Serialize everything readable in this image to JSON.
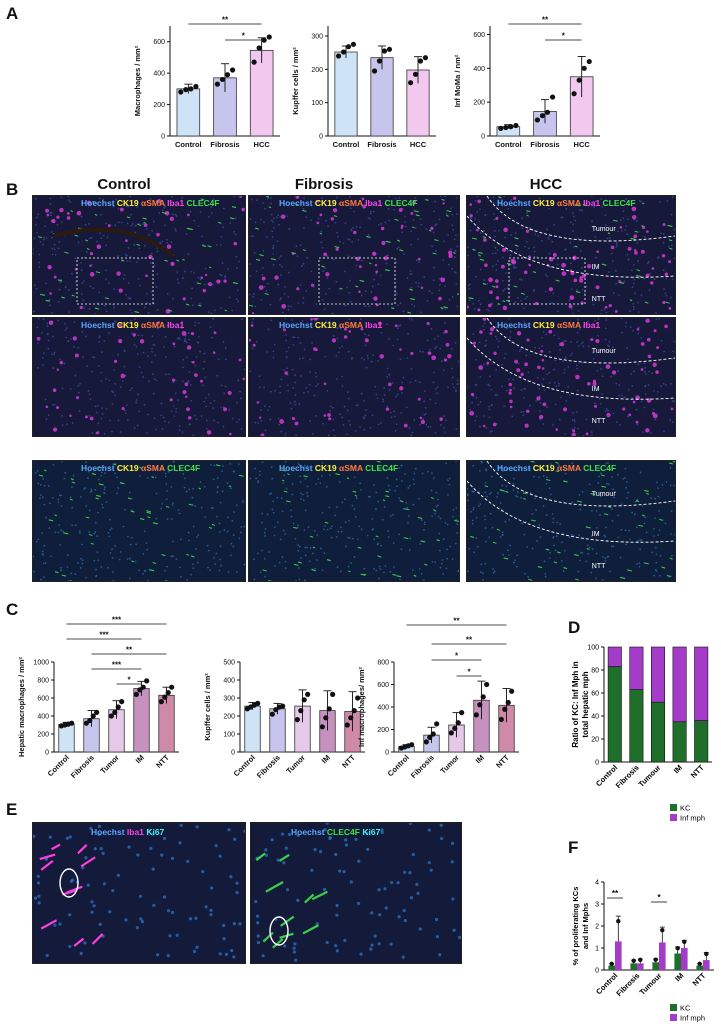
{
  "panels": {
    "A": "A",
    "B": "B",
    "C": "C",
    "D": "D",
    "E": "E",
    "F": "F"
  },
  "sig": {
    "two": "**",
    "one": "*",
    "three": "***"
  },
  "colors": {
    "control": "#cfe3f7",
    "fibrosis": "#c7c5ee",
    "hcc": "#f2c8ee",
    "tumor": "#e6c9e8",
    "im": "#c690bf",
    "ntt": "#cf8aa8",
    "kc": "#1f6e2a",
    "infmph": "#a43bc9"
  },
  "panelA": [
    {
      "ylabel": "Macrophages / mm²",
      "yticks": [
        "0",
        "200",
        "400",
        "600"
      ],
      "ymax": 700,
      "categories": [
        "Control",
        "Fibrosis",
        "HCC"
      ],
      "values": [
        300,
        370,
        545
      ],
      "errors": [
        30,
        90,
        80
      ],
      "points": [
        [
          280,
          295,
          300,
          315
        ],
        [
          330,
          360,
          390,
          420
        ],
        [
          470,
          560,
          610,
          630
        ]
      ]
    },
    {
      "ylabel": "Kupffer cells / mm²",
      "yticks": [
        "0",
        "100",
        "200",
        "300"
      ],
      "ymax": 330,
      "categories": [
        "Control",
        "Fibrosis",
        "HCC"
      ],
      "values": [
        252,
        235,
        198
      ],
      "errors": [
        18,
        35,
        40
      ],
      "points": [
        [
          240,
          252,
          268,
          275
        ],
        [
          195,
          225,
          255,
          260
        ],
        [
          160,
          185,
          225,
          235
        ]
      ]
    },
    {
      "ylabel": "Inf MoMa / nm²",
      "yticks": [
        "0",
        "200",
        "400",
        "600"
      ],
      "ymax": 650,
      "categories": [
        "Control",
        "Fibrosis",
        "HCC"
      ],
      "values": [
        55,
        145,
        350
      ],
      "errors": [
        12,
        70,
        120
      ],
      "points": [
        [
          45,
          50,
          55,
          62
        ],
        [
          95,
          120,
          140,
          230
        ],
        [
          250,
          330,
          400,
          440
        ]
      ]
    }
  ],
  "panelB": {
    "columns": [
      "Control",
      "Fibrosis",
      "HCC"
    ],
    "stains_row1": [
      "Hoechst",
      "CK19",
      "αSMA",
      "Iba1",
      "CLEC4F"
    ],
    "stains_row2": [
      "Hoechst",
      "CK19",
      "αSMA",
      "Iba1"
    ],
    "stains_row3": [
      "Hoechst",
      "CK19",
      "αSMA",
      "CLEC4F"
    ],
    "regions": [
      "Tumour",
      "IM",
      "NTT"
    ]
  },
  "panelC": [
    {
      "ylabel": "Hepatic macrophages / mm²",
      "yticks": [
        "0",
        "200",
        "400",
        "600",
        "800",
        "1000"
      ],
      "ymax": 1000,
      "categories": [
        "Control",
        "Fibrosis",
        "Tumor",
        "IM",
        "NTT"
      ],
      "values": [
        305,
        370,
        470,
        705,
        630
      ],
      "errors": [
        25,
        90,
        100,
        80,
        90
      ],
      "points": [
        [
          290,
          300,
          310,
          320
        ],
        [
          320,
          350,
          400,
          440
        ],
        [
          400,
          440,
          500,
          560
        ],
        [
          640,
          690,
          720,
          790
        ],
        [
          560,
          610,
          660,
          720
        ]
      ]
    },
    {
      "ylabel": "Kupffer cells / mm²",
      "yticks": [
        "0",
        "100",
        "200",
        "300",
        "400",
        "500"
      ],
      "ymax": 500,
      "categories": [
        "Control",
        "Fibrosis",
        "Tumor",
        "IM",
        "NTT"
      ],
      "values": [
        255,
        240,
        255,
        230,
        225
      ],
      "errors": [
        20,
        30,
        90,
        110,
        110
      ],
      "points": [
        [
          240,
          250,
          260,
          270
        ],
        [
          210,
          235,
          250,
          255
        ],
        [
          180,
          230,
          290,
          320
        ],
        [
          140,
          190,
          240,
          320
        ],
        [
          150,
          190,
          230,
          300
        ]
      ]
    },
    {
      "ylabel": "Inf macrophages/ mm²",
      "yticks": [
        "0",
        "200",
        "400",
        "600",
        "800"
      ],
      "ymax": 800,
      "categories": [
        "Control",
        "Fibrosis",
        "Tumor",
        "IM",
        "NTT"
      ],
      "values": [
        50,
        150,
        240,
        460,
        415
      ],
      "errors": [
        15,
        70,
        110,
        170,
        150
      ],
      "points": [
        [
          35,
          45,
          55,
          65
        ],
        [
          90,
          130,
          160,
          250
        ],
        [
          170,
          210,
          260,
          350
        ],
        [
          330,
          420,
          490,
          600
        ],
        [
          290,
          380,
          440,
          540
        ]
      ]
    }
  ],
  "panelD": {
    "ylabel_line1": "Ratio of KC: Inf Mph in",
    "ylabel_line2": "total hepatic mph",
    "yticks": [
      "0",
      "20",
      "40",
      "60",
      "80",
      "100"
    ],
    "categories": [
      "Control",
      "Fibrosis",
      "Tumour",
      "IM",
      "NTT"
    ],
    "kc_values": [
      83,
      63,
      52,
      35,
      36
    ],
    "legend": [
      "KC",
      "Inf mph"
    ]
  },
  "panelE": {
    "left_stains": [
      "Hoechst",
      "Iba1",
      "Ki67"
    ],
    "right_stains": [
      "Hoechst",
      "CLEC4F",
      "Ki67"
    ]
  },
  "panelF": {
    "ylabel_line1": "% of proliferating KCs",
    "ylabel_line2": "and Inf Mphs",
    "yticks": [
      "0",
      "1",
      "2",
      "3",
      "4"
    ],
    "ymax": 4,
    "categories": [
      "Control",
      "Fibrosis",
      "Tumour",
      "IM",
      "NTT"
    ],
    "kc_values": [
      0.2,
      0.3,
      0.35,
      0.75,
      0.2
    ],
    "inf_values": [
      1.3,
      0.3,
      1.25,
      1.0,
      0.45
    ],
    "kc_err": [
      0.1,
      0.15,
      0.15,
      0.3,
      0.1
    ],
    "inf_err": [
      1.15,
      0.2,
      0.7,
      0.35,
      0.35
    ],
    "legend": [
      "KC",
      "Inf mph"
    ]
  }
}
